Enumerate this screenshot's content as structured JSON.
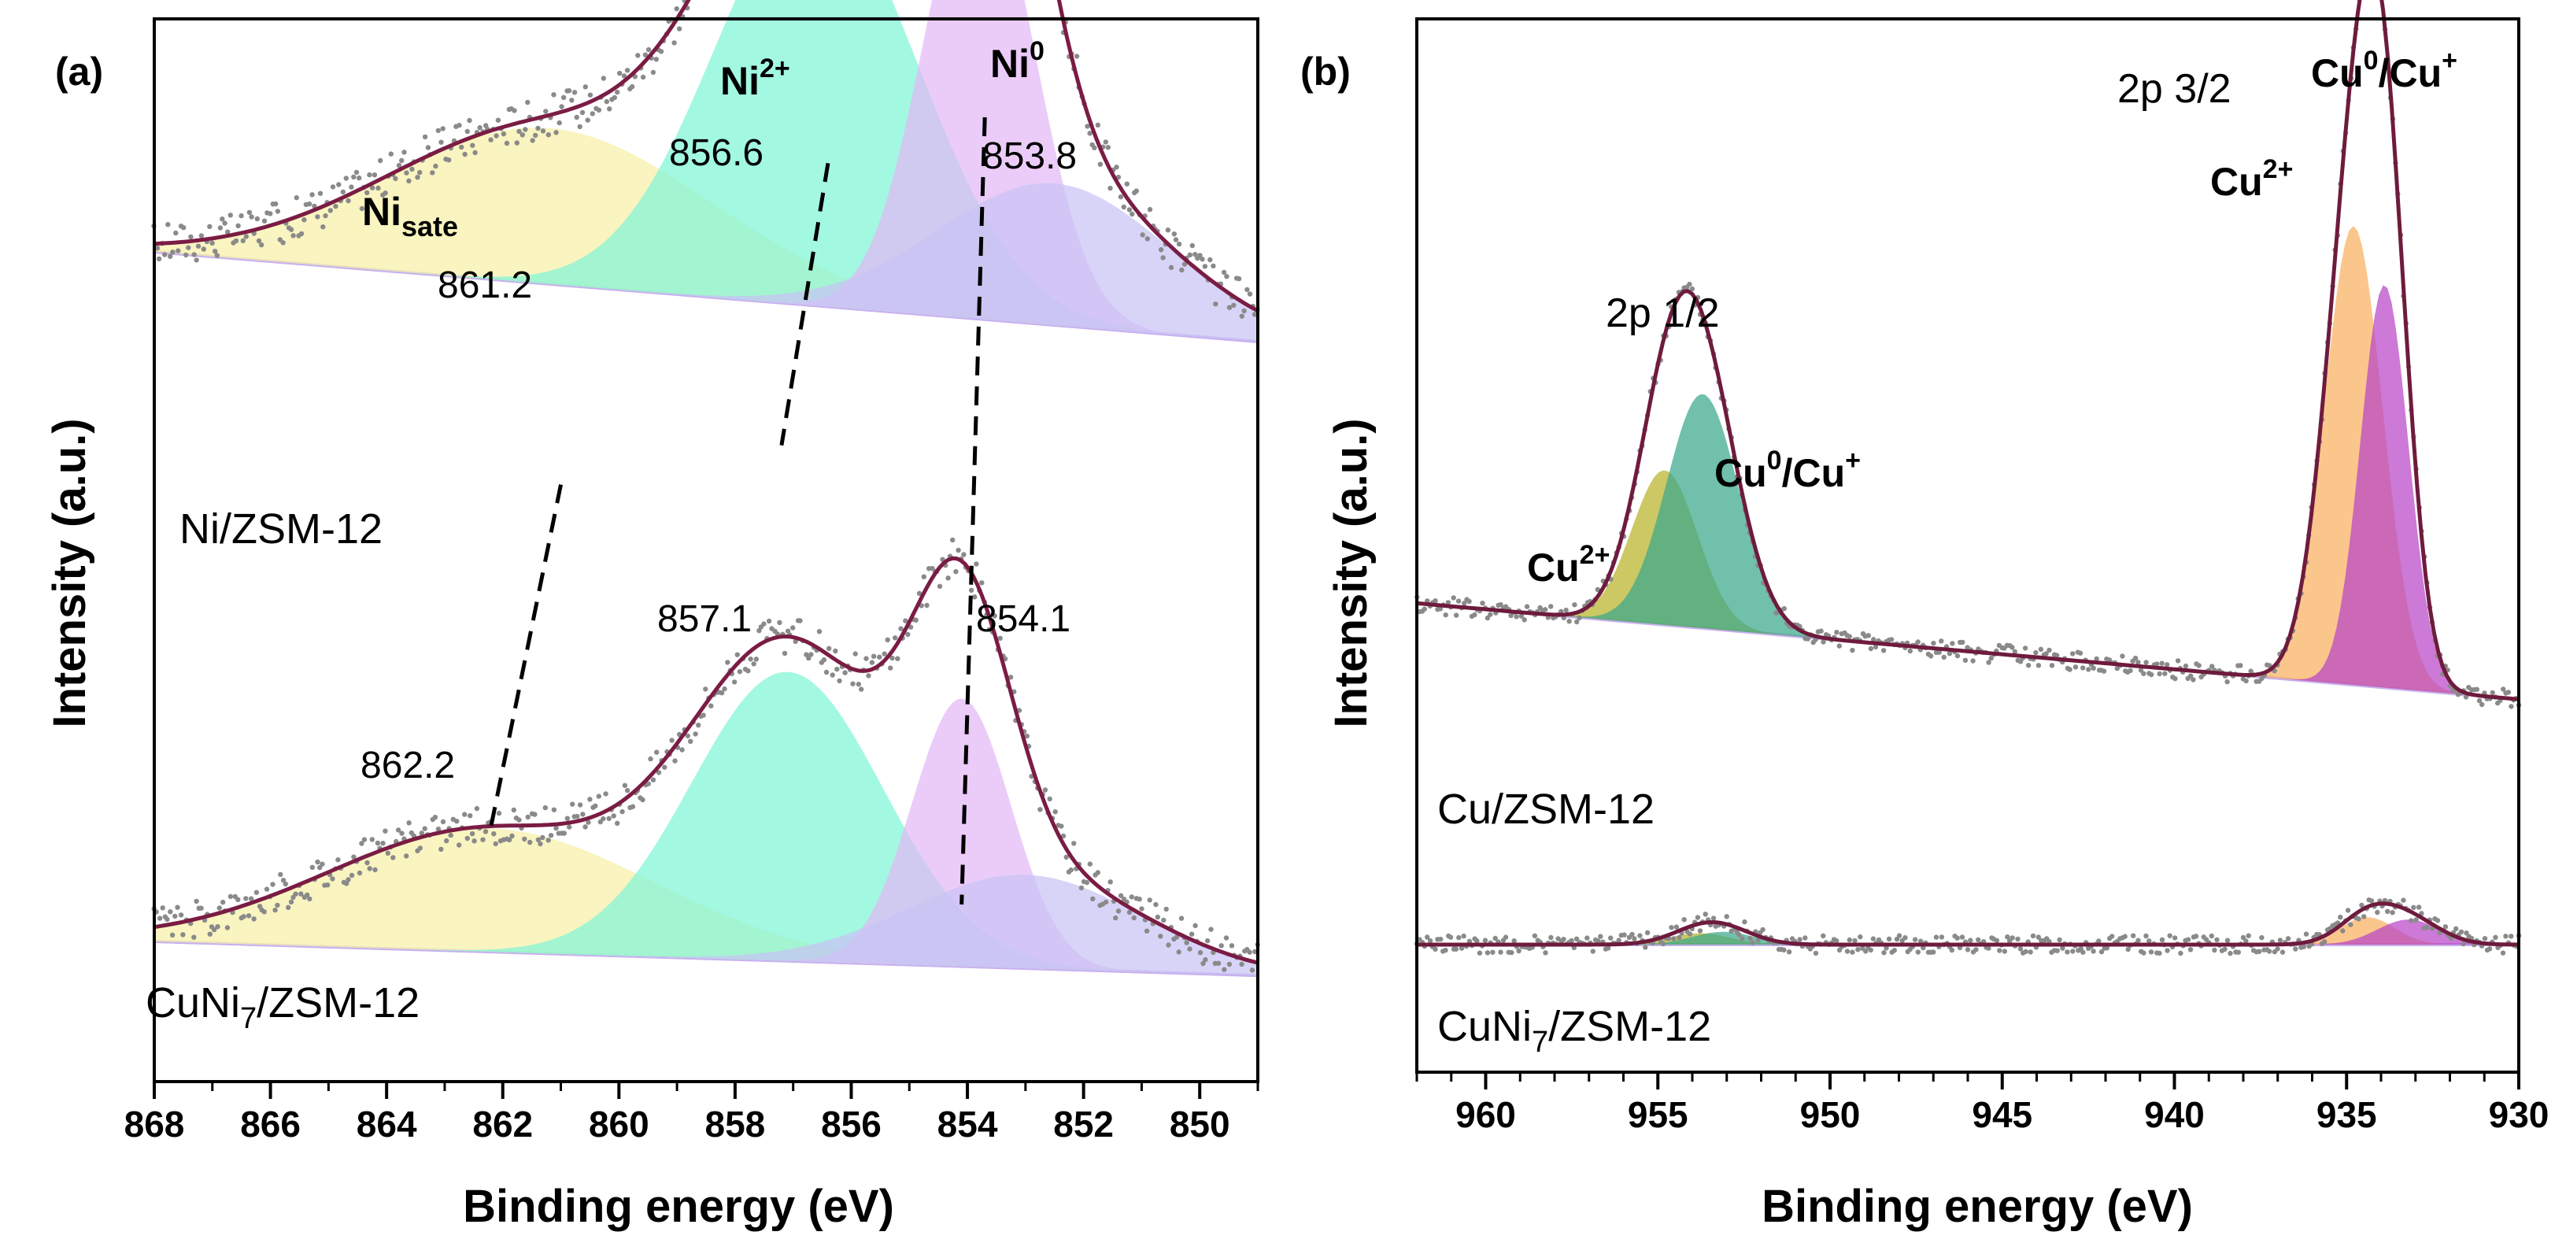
{
  "chart_data": [
    {
      "type": "line",
      "panel_label": "(a)",
      "xlabel": "Binding energy (eV)",
      "ylabel": "Intensity (a.u.)",
      "xlim": [
        868,
        849
      ],
      "x_ticks": [
        "868",
        "866",
        "864",
        "862",
        "860",
        "858",
        "856",
        "854",
        "852",
        "850"
      ],
      "x_tick_values": [
        868,
        866,
        864,
        862,
        860,
        858,
        856,
        854,
        852,
        850
      ],
      "grid": false,
      "series": [
        {
          "name": "Ni/ZSM-12",
          "baseline": [
            0.4,
            0.21
          ],
          "fit_peaks": [
            {
              "name": "Ni_sate",
              "center": 861.2,
              "height": 0.33,
              "width": 2.8,
              "color": "#f6f0a8"
            },
            {
              "name": "Ni2+",
              "center": 856.6,
              "height": 0.87,
              "width": 1.75,
              "color": "#7ff5d6"
            },
            {
              "name": "Ni0",
              "center": 853.8,
              "height": 0.96,
              "width": 0.95,
              "color": "#e3b8f5"
            },
            {
              "name": "tail",
              "center": 852.5,
              "height": 0.3,
              "width": 2.0,
              "color": "#c9c3f5"
            }
          ]
        },
        {
          "name": "CuNi7/ZSM-12",
          "baseline": [
            0.0,
            -0.08
          ],
          "fit_peaks": [
            {
              "name": "Ni_sate",
              "center": 862.2,
              "height": 0.29,
              "width": 2.8,
              "color": "#f6f0a8"
            },
            {
              "name": "Ni2+",
              "center": 857.1,
              "height": 0.68,
              "width": 1.65,
              "color": "#7ff5d6"
            },
            {
              "name": "Ni0",
              "center": 854.1,
              "height": 0.63,
              "width": 0.85,
              "color": "#e3b8f5"
            },
            {
              "name": "tail",
              "center": 853.0,
              "height": 0.22,
              "width": 2.0,
              "color": "#c9c3f5"
            }
          ]
        }
      ],
      "annotations": {
        "ni_sate": {
          "base": "Ni",
          "sub": "sate"
        },
        "ni2": {
          "base": "Ni",
          "sup": "2+"
        },
        "ni0": {
          "base": "Ni",
          "sup": "0"
        },
        "values": [
          "861.2",
          "856.6",
          "853.8",
          "862.2",
          "857.1",
          "854.1"
        ],
        "sample_labels": {
          "top": "Ni/ZSM-12",
          "bottom_base": "CuNi",
          "bottom_sub": "7",
          "bottom_rest": "/ZSM-12"
        }
      },
      "dashed_guides": [
        {
          "from": [
            861.0,
            0.56
          ],
          "to": [
            862.2,
            0.04
          ]
        },
        {
          "from": [
            856.4,
            1.05
          ],
          "to": [
            857.2,
            0.62
          ]
        },
        {
          "from": [
            853.7,
            1.12
          ],
          "to": [
            854.1,
            -0.08
          ]
        }
      ],
      "ylim": [
        -0.35,
        1.27
      ]
    },
    {
      "type": "line",
      "panel_label": "(b)",
      "xlabel": "Binding energy (eV)",
      "ylabel": "Intensity (a.u.)",
      "xlim": [
        962,
        930
      ],
      "x_ticks": [
        "960",
        "955",
        "950",
        "945",
        "940",
        "935",
        "930"
      ],
      "x_tick_values": [
        960,
        955,
        950,
        945,
        940,
        935,
        930
      ],
      "grid": false,
      "series": [
        {
          "name": "Cu/ZSM-12",
          "baseline": [
            0.275,
            0.07
          ],
          "fit_peaks": [
            {
              "name": "Cu2+ (2p 1/2)",
              "center": 954.8,
              "height": 0.33,
              "width": 0.95,
              "color": "#b9b328"
            },
            {
              "name": "Cu0/Cu+ (2p 1/2)",
              "center": 953.7,
              "height": 0.5,
              "width": 1.05,
              "color": "#3aa88a"
            },
            {
              "name": "Cu2+ (2p 3/2)",
              "center": 934.8,
              "height": 0.98,
              "width": 0.85,
              "color": "#f9b060"
            },
            {
              "name": "Cu0/Cu+ (2p 3/2)",
              "center": 933.9,
              "height": 0.86,
              "width": 0.7,
              "color": "#b845c8"
            }
          ]
        },
        {
          "name": "CuNi7/ZSM-12",
          "baseline": [
            0.0,
            0.0
          ],
          "fit_peaks": [
            {
              "name": "Cu2+ (2p 1/2)",
              "center": 953.8,
              "height": 0.025,
              "width": 0.9,
              "color": "#b9b328"
            },
            {
              "name": "Cu0/Cu+ (2p 1/2)",
              "center": 953.1,
              "height": 0.028,
              "width": 0.9,
              "color": "#3aa88a"
            },
            {
              "name": "Cu2+ (2p 3/2)",
              "center": 934.4,
              "height": 0.06,
              "width": 0.8,
              "color": "#f9b060"
            },
            {
              "name": "Cu0/Cu+ (2p 3/2)",
              "center": 933.2,
              "height": 0.055,
              "width": 0.9,
              "color": "#b845c8"
            }
          ]
        }
      ],
      "annotations": {
        "p12": "2p 1/2",
        "p32": "2p 3/2",
        "cu2_left": {
          "base": "Cu",
          "sup": "2+"
        },
        "cu01_left": {
          "a": "Cu",
          "a_sup": "0",
          "mid": "/Cu",
          "b_sup": "+"
        },
        "cu2_right": {
          "base": "Cu",
          "sup": "2+"
        },
        "cu01_right": {
          "a": "Cu",
          "a_sup": "0",
          "mid": "/Cu",
          "b_sup": "+"
        },
        "sample_labels": {
          "top": "Cu/ZSM-12",
          "bottom_base": "CuNi",
          "bottom_sub": "7",
          "bottom_rest": "/ZSM-12"
        }
      },
      "ylim": [
        -0.22,
        1.45
      ]
    }
  ]
}
